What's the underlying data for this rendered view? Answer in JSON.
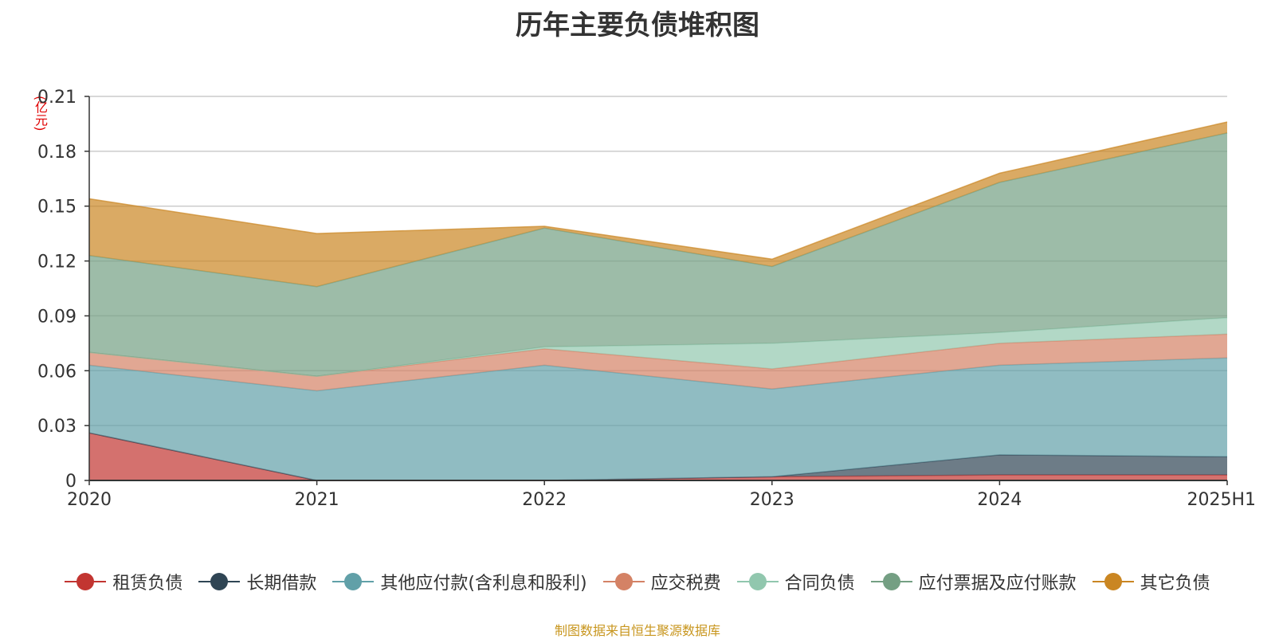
{
  "chart_data": {
    "type": "area",
    "stacked": true,
    "title": "历年主要负债堆积图",
    "unit_label": "(亿元)",
    "categories": [
      "2020",
      "2021",
      "2022",
      "2023",
      "2024",
      "2025H1"
    ],
    "ylim": [
      0,
      0.21
    ],
    "yticks": [
      0,
      0.03,
      0.06,
      0.09,
      0.12,
      0.15,
      0.18,
      0.21
    ],
    "ytick_labels": [
      "0",
      "0.03",
      "0.06",
      "0.09",
      "0.12",
      "0.15",
      "0.18",
      "0.21"
    ],
    "grid": true,
    "legend_position": "bottom",
    "series": [
      {
        "name": "租赁负债",
        "color": "#c23531",
        "values": [
          0.026,
          0.0,
          0.0,
          0.002,
          0.003,
          0.003
        ]
      },
      {
        "name": "长期借款",
        "color": "#2f4554",
        "values": [
          0.0,
          0.0,
          0.0,
          0.0,
          0.011,
          0.01
        ]
      },
      {
        "name": "其他应付款(含利息和股利)",
        "color": "#61a0a8",
        "values": [
          0.037,
          0.049,
          0.063,
          0.048,
          0.049,
          0.054
        ]
      },
      {
        "name": "应交税费",
        "color": "#d48265",
        "values": [
          0.007,
          0.008,
          0.009,
          0.011,
          0.012,
          0.013
        ]
      },
      {
        "name": "合同负债",
        "color": "#91c7ae",
        "values": [
          0.0,
          0.0,
          0.001,
          0.014,
          0.006,
          0.009
        ]
      },
      {
        "name": "应付票据及应付账款",
        "color": "#749f83",
        "values": [
          0.053,
          0.049,
          0.065,
          0.042,
          0.082,
          0.101
        ]
      },
      {
        "name": "其它负债",
        "color": "#ca8622",
        "values": [
          0.031,
          0.029,
          0.001,
          0.004,
          0.005,
          0.006
        ]
      }
    ]
  },
  "source_note": "制图数据来自恒生聚源数据库"
}
